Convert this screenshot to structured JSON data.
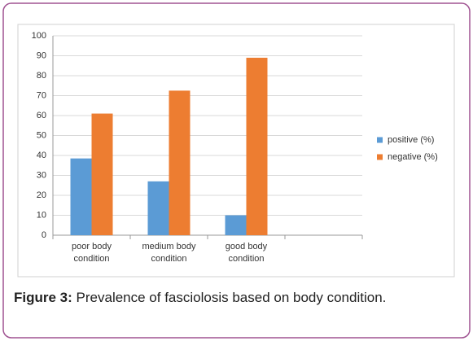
{
  "chart_data": {
    "type": "bar",
    "categories": [
      "poor body condition",
      "medium body condition",
      "good body condition",
      null
    ],
    "series": [
      {
        "name": "positive (%)",
        "color": "#5b9bd5",
        "values": [
          38.5,
          27,
          10,
          null
        ]
      },
      {
        "name": "negative (%)",
        "color": "#ed7d31",
        "values": [
          61,
          72.5,
          89,
          null
        ]
      }
    ],
    "ylim": [
      0,
      100
    ],
    "yticks": [
      0,
      10,
      20,
      30,
      40,
      50,
      60,
      70,
      80,
      90,
      100
    ],
    "grid": true,
    "legend": "right"
  },
  "caption": {
    "label": "Figure 3:",
    "text": "Prevalence of fasciolosis based on body condition."
  }
}
